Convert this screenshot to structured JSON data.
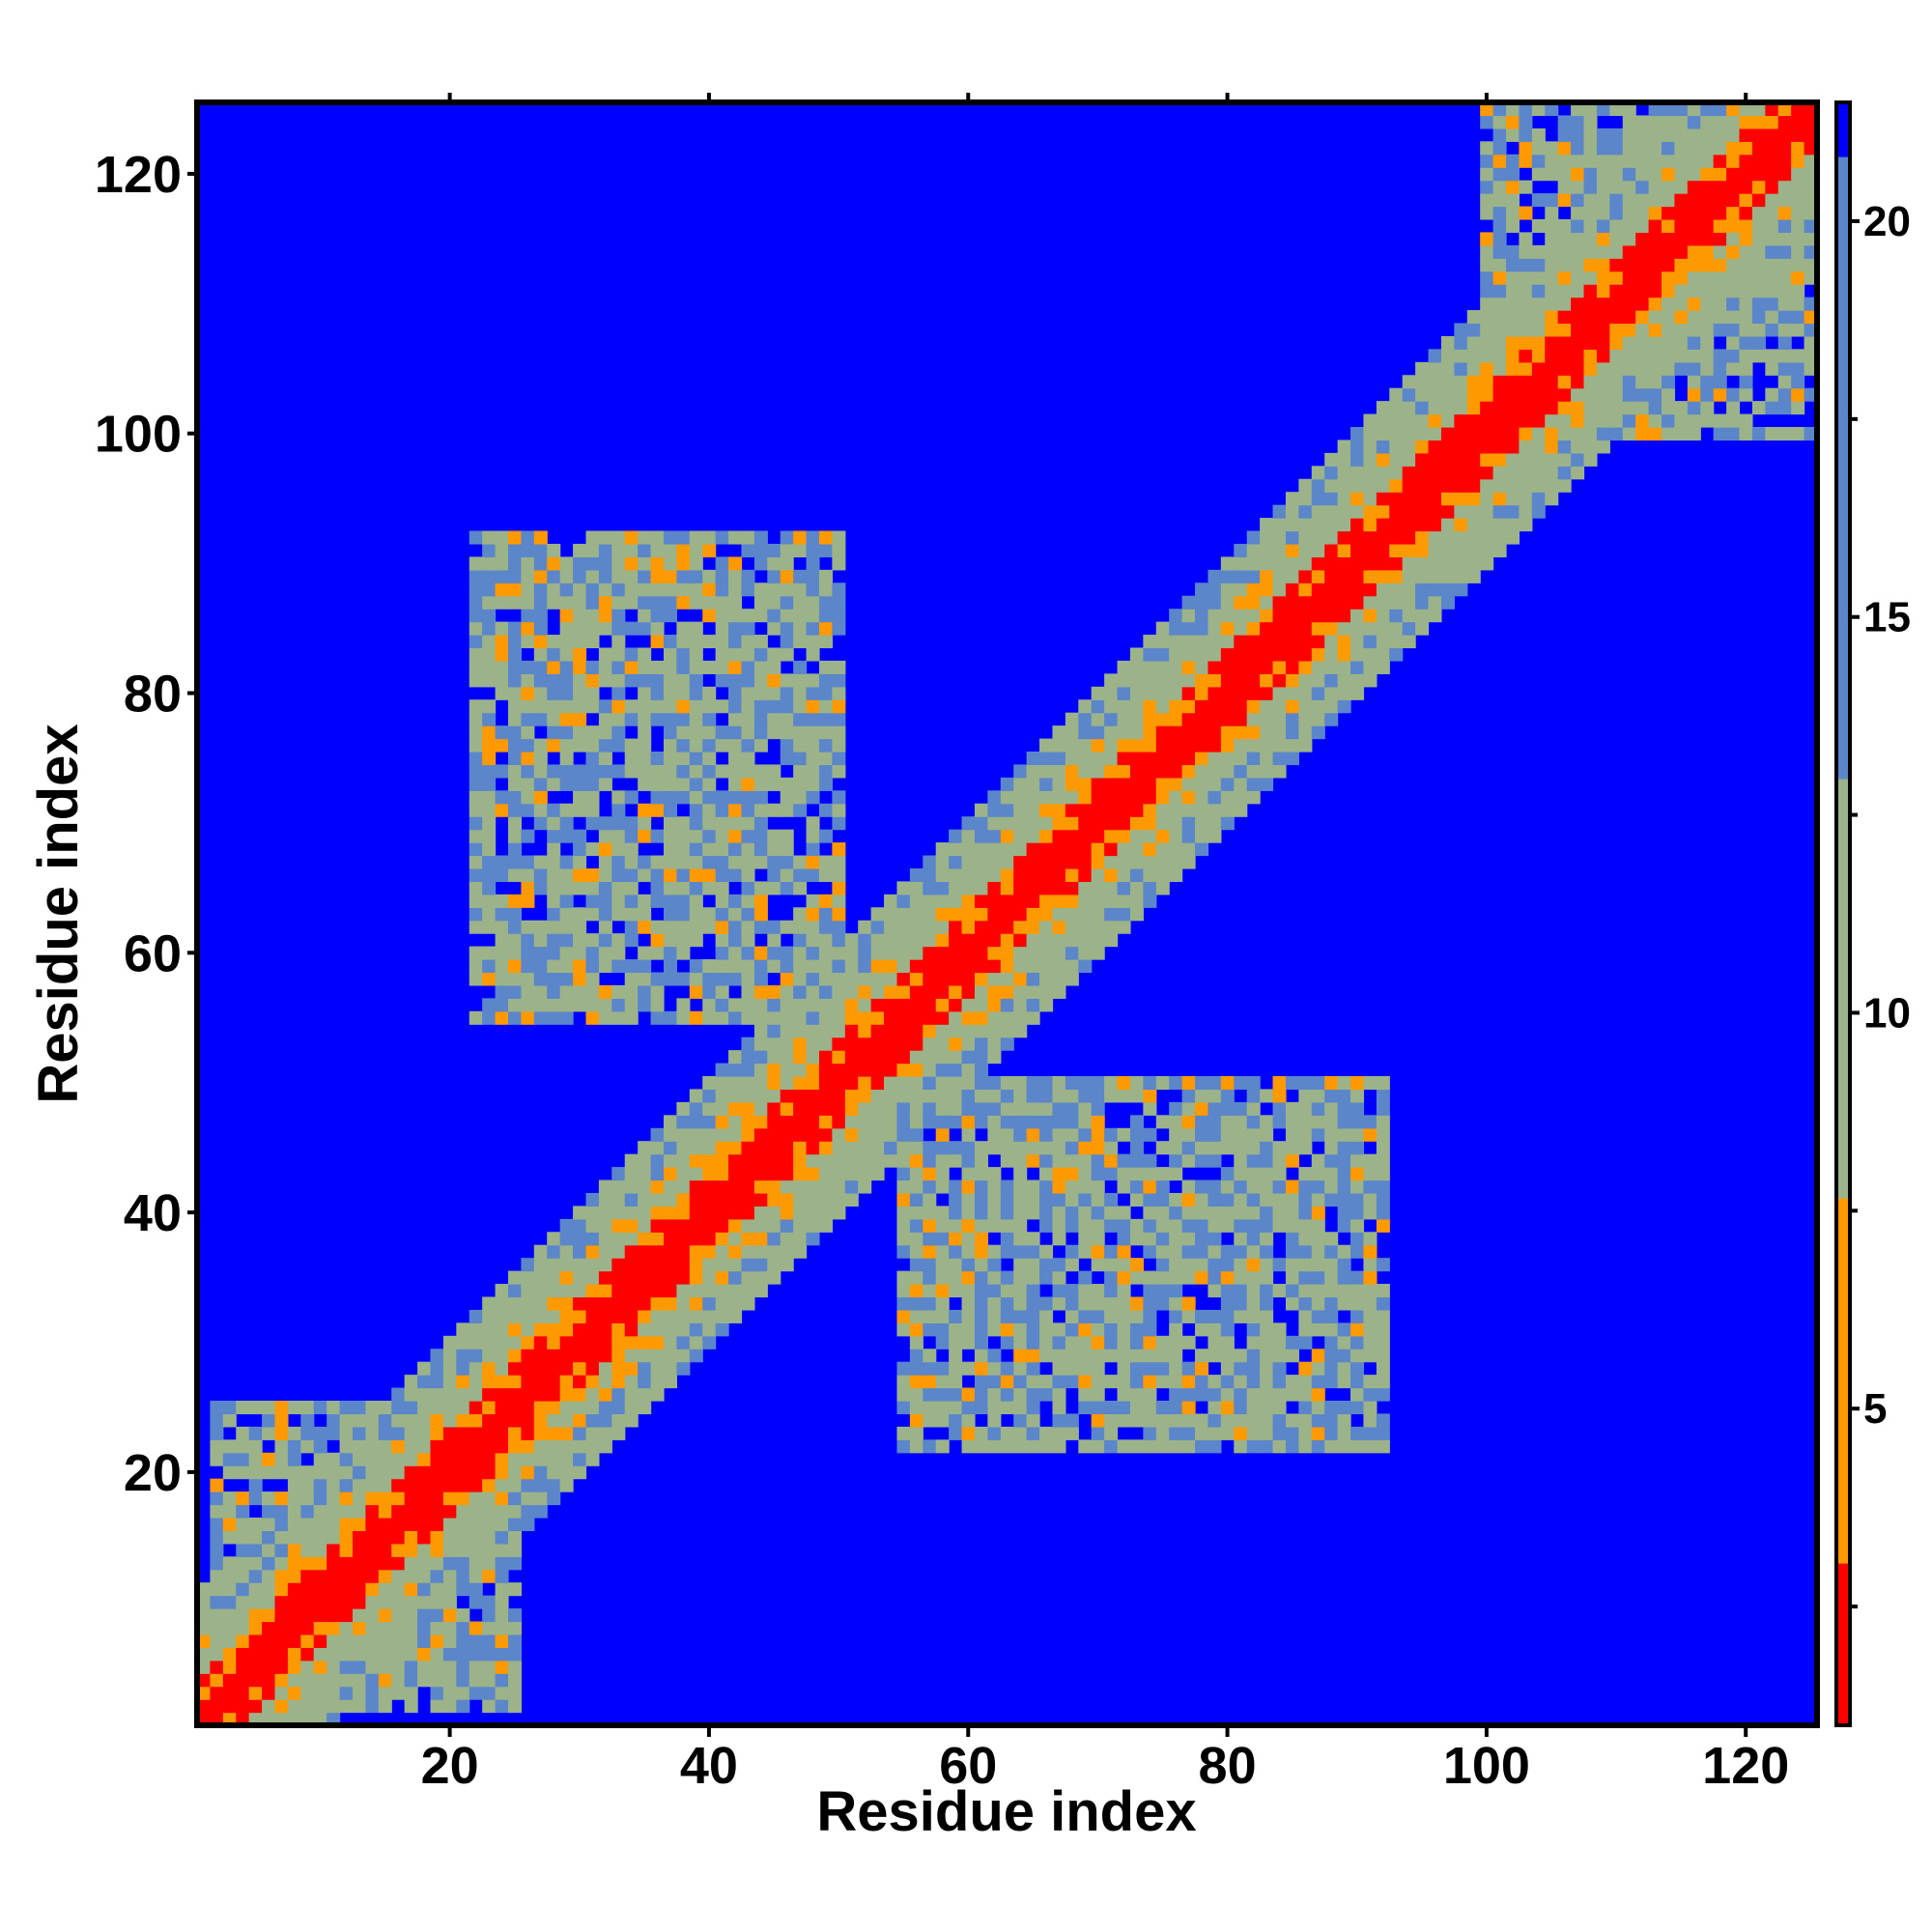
{
  "chart_data": {
    "type": "heatmap",
    "title": "",
    "xlabel": "Residue index",
    "ylabel": "Residue index",
    "n_residues": 125,
    "xlim": [
      1,
      125
    ],
    "ylim": [
      1,
      125
    ],
    "x_ticks": [
      20,
      40,
      60,
      80,
      100,
      120
    ],
    "y_ticks": [
      20,
      40,
      60,
      80,
      100,
      120
    ],
    "x_tick_labels": [
      "20",
      "40",
      "60",
      "80",
      "100",
      "120"
    ],
    "y_tick_labels": [
      "20",
      "40",
      "60",
      "80",
      "100",
      "120"
    ],
    "grid": false,
    "colorbar": {
      "placement": "right",
      "range": [
        1,
        21.5
      ],
      "ticks": [
        5,
        10,
        15,
        20
      ],
      "tick_labels": [
        "5",
        "10",
        "15",
        "20"
      ],
      "colors": {
        "low": "#ff0000",
        "mid_low": "#ff9900",
        "mid": "#9cb38a",
        "high": "#5b86c9",
        "max": "#0000ff"
      }
    },
    "description_values": {
      "diagonal_distance": 1,
      "near_diagonal_band_width_residues": 10,
      "off_diagonal_contact_blocks": [
        {
          "x_range": [
            22,
            50
          ],
          "y_range": [
            55,
            90
          ],
          "typical_value": 12
        },
        {
          "x_range": [
            55,
            92
          ],
          "y_range": [
            22,
            50
          ],
          "typical_value": 12
        },
        {
          "x_range": [
            2,
            25
          ],
          "y_range": [
            2,
            22
          ],
          "typical_value": 9
        },
        {
          "x_range": [
            100,
            125
          ],
          "y_range": [
            100,
            125
          ],
          "typical_value": 9
        }
      ],
      "background_value": 21.5
    }
  }
}
